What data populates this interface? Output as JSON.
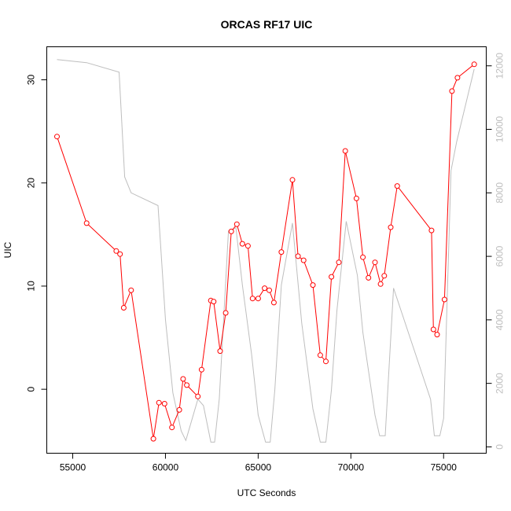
{
  "chart_data": {
    "type": "line",
    "title": "ORCAS RF17 UIC",
    "xlabel": "UTC Seconds",
    "ylabel": "UIC",
    "y2label": "",
    "xlim": [
      53600,
      77300
    ],
    "ylim": [
      -6.2,
      33.2
    ],
    "y2lim": [
      -200,
      12600
    ],
    "xticks": [
      55000,
      60000,
      65000,
      70000,
      75000
    ],
    "yticks": [
      0,
      10,
      20,
      30
    ],
    "y2ticks": [
      0,
      2000,
      4000,
      6000,
      8000,
      10000,
      12000
    ],
    "colors": {
      "uic": "#ff0000",
      "altitude": "#bebebe",
      "axis": "#000000"
    },
    "series": [
      {
        "axis": "left",
        "color": "#ff0000",
        "markers": "open-circle",
        "x": [
          54150,
          55750,
          57350,
          57550,
          57750,
          58150,
          59350,
          59650,
          59950,
          60350,
          60750,
          60950,
          61150,
          61750,
          61950,
          62450,
          62600,
          62950,
          63250,
          63550,
          63850,
          64150,
          64450,
          64700,
          65000,
          65350,
          65600,
          65850,
          66250,
          66850,
          67150,
          67450,
          67950,
          68350,
          68650,
          68950,
          69350,
          69700,
          70300,
          70650,
          70950,
          71300,
          71600,
          71800,
          72150,
          72500,
          74350,
          74450,
          74650,
          75050,
          75450,
          75750,
          76650
        ],
        "y": [
          24.5,
          16.1,
          13.4,
          13.1,
          7.9,
          9.6,
          -4.8,
          -1.3,
          -1.4,
          -3.7,
          -2.0,
          1.0,
          0.4,
          -0.7,
          1.9,
          8.6,
          8.5,
          3.7,
          7.4,
          15.3,
          16.0,
          14.1,
          13.9,
          8.8,
          8.8,
          9.8,
          9.6,
          8.4,
          13.3,
          20.3,
          12.9,
          12.5,
          10.1,
          3.3,
          2.7,
          10.9,
          12.3,
          23.1,
          18.5,
          12.8,
          10.8,
          12.3,
          10.2,
          11.0,
          15.7,
          19.7,
          15.4,
          5.8,
          5.3,
          8.7,
          28.9,
          30.2,
          31.5
        ]
      },
      {
        "axis": "right",
        "color": "#bebebe",
        "markers": "none",
        "x": [
          54150,
          55750,
          57500,
          57800,
          58150,
          59600,
          60000,
          60400,
          60850,
          61100,
          61750,
          62050,
          62450,
          62650,
          62900,
          63400,
          63800,
          64150,
          64650,
          65000,
          65400,
          65650,
          65900,
          66250,
          66850,
          67350,
          67950,
          68350,
          68650,
          68950,
          69250,
          69750,
          70350,
          70650,
          71300,
          71550,
          71850,
          72300,
          74300,
          74500,
          74800,
          75000,
          75400,
          75700,
          76650
        ],
        "y": [
          12200,
          12100,
          11800,
          8500,
          8000,
          7600,
          4000,
          1700,
          500,
          200,
          1500,
          1300,
          150,
          150,
          1500,
          6800,
          6900,
          5100,
          2900,
          1000,
          150,
          150,
          1800,
          5100,
          7050,
          3900,
          1200,
          150,
          150,
          1800,
          4300,
          7100,
          5400,
          3600,
          1000,
          350,
          350,
          5000,
          1500,
          350,
          350,
          900,
          8700,
          9600,
          11900
        ]
      }
    ]
  }
}
